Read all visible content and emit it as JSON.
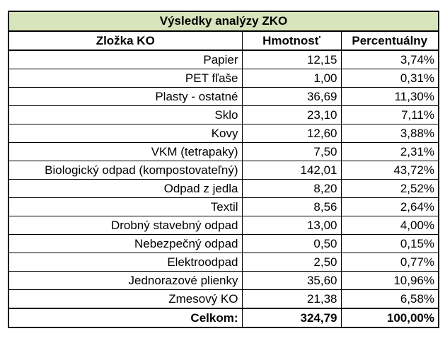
{
  "table": {
    "title": "Výsledky analýzy ZKO",
    "headers": {
      "component": "Zložka KO",
      "mass": "Hmotnosť",
      "percent": "Percentuálny"
    },
    "rows": [
      {
        "name": "Papier",
        "mass": "12,15",
        "percent": "3,74%"
      },
      {
        "name": "PET fľaše",
        "mass": "1,00",
        "percent": "0,31%"
      },
      {
        "name": "Plasty - ostatné",
        "mass": "36,69",
        "percent": "11,30%"
      },
      {
        "name": "Sklo",
        "mass": "23,10",
        "percent": "7,11%"
      },
      {
        "name": "Kovy",
        "mass": "12,60",
        "percent": "3,88%"
      },
      {
        "name": "VKM (tetrapaky)",
        "mass": "7,50",
        "percent": "2,31%"
      },
      {
        "name": "Biologický odpad (kompostovateľný)",
        "mass": "142,01",
        "percent": "43,72%"
      },
      {
        "name": "Odpad z jedla",
        "mass": "8,20",
        "percent": "2,52%"
      },
      {
        "name": "Textil",
        "mass": "8,56",
        "percent": "2,64%"
      },
      {
        "name": "Drobný stavebný odpad",
        "mass": "13,00",
        "percent": "4,00%"
      },
      {
        "name": "Nebezpečný odpad",
        "mass": "0,50",
        "percent": "0,15%"
      },
      {
        "name": "Elektroodpad",
        "mass": "2,50",
        "percent": "0,77%"
      },
      {
        "name": "Jednorazové plienky",
        "mass": "35,60",
        "percent": "10,96%"
      },
      {
        "name": "Zmesový KO",
        "mass": "21,38",
        "percent": "6,58%"
      }
    ],
    "total": {
      "label": "Celkom:",
      "mass": "324,79",
      "percent": "100,00%"
    },
    "colors": {
      "title_background": "#d7e4bc",
      "border": "#000000"
    }
  }
}
